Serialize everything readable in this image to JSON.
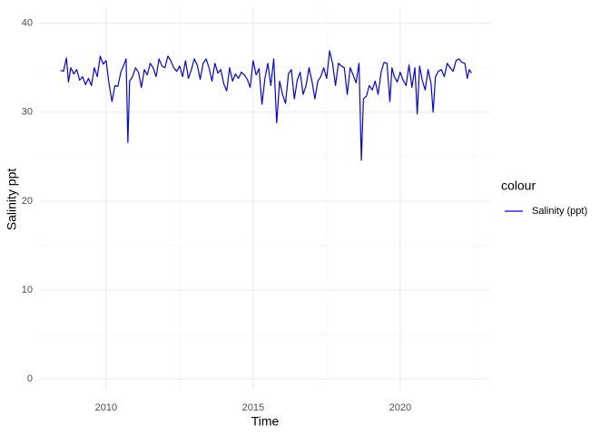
{
  "chart_data": {
    "type": "line",
    "x_label": "Time",
    "y_label": "Salinity ppt",
    "legend_title": "colour",
    "legend_position": "right",
    "grid": true,
    "xlim": [
      2007.75,
      2023.06
    ],
    "xticks": [
      2010,
      2015,
      2020
    ],
    "minor_xticks": [
      2007.5,
      2012.5,
      2017.5,
      2022.5
    ],
    "ylim": [
      -1.2,
      41.6
    ],
    "yticks": [
      0,
      10,
      20,
      30,
      40
    ],
    "minor_yticks": [
      5,
      15,
      25,
      35
    ],
    "x": [
      2008.45,
      2008.55,
      2008.65,
      2008.72,
      2008.8,
      2008.9,
      2009.0,
      2009.1,
      2009.2,
      2009.3,
      2009.4,
      2009.5,
      2009.6,
      2009.7,
      2009.8,
      2009.9,
      2010.0,
      2010.1,
      2010.2,
      2010.3,
      2010.4,
      2010.5,
      2010.6,
      2010.68,
      2010.74,
      2010.8,
      2010.9,
      2011.0,
      2011.1,
      2011.2,
      2011.3,
      2011.4,
      2011.5,
      2011.6,
      2011.7,
      2011.8,
      2011.9,
      2012.0,
      2012.1,
      2012.2,
      2012.3,
      2012.4,
      2012.5,
      2012.6,
      2012.7,
      2012.8,
      2012.9,
      2013.0,
      2013.1,
      2013.2,
      2013.3,
      2013.4,
      2013.5,
      2013.6,
      2013.7,
      2013.8,
      2013.9,
      2014.0,
      2014.1,
      2014.2,
      2014.3,
      2014.4,
      2014.5,
      2014.6,
      2014.7,
      2014.8,
      2014.9,
      2015.0,
      2015.1,
      2015.2,
      2015.3,
      2015.4,
      2015.5,
      2015.6,
      2015.7,
      2015.8,
      2015.9,
      2016.0,
      2016.1,
      2016.2,
      2016.3,
      2016.4,
      2016.5,
      2016.6,
      2016.7,
      2016.8,
      2016.9,
      2017.0,
      2017.1,
      2017.2,
      2017.3,
      2017.4,
      2017.5,
      2017.6,
      2017.7,
      2017.8,
      2017.9,
      2018.0,
      2018.1,
      2018.2,
      2018.3,
      2018.4,
      2018.5,
      2018.6,
      2018.68,
      2018.75,
      2018.85,
      2018.95,
      2019.05,
      2019.15,
      2019.25,
      2019.35,
      2019.45,
      2019.55,
      2019.65,
      2019.72,
      2019.8,
      2019.9,
      2020.0,
      2020.1,
      2020.2,
      2020.3,
      2020.4,
      2020.5,
      2020.58,
      2020.66,
      2020.75,
      2020.85,
      2020.95,
      2021.05,
      2021.12,
      2021.2,
      2021.3,
      2021.4,
      2021.5,
      2021.6,
      2021.7,
      2021.8,
      2021.9,
      2022.0,
      2022.1,
      2022.2,
      2022.28,
      2022.35,
      2022.42
    ],
    "series": [
      {
        "name": "Salinity (ppt)",
        "color": "#0000ff",
        "values": [
          34.7,
          34.6,
          36.1,
          33.4,
          35.0,
          34.3,
          34.8,
          33.6,
          34.0,
          33.1,
          33.8,
          33.0,
          35.0,
          34.0,
          36.3,
          35.4,
          35.8,
          33.2,
          31.2,
          33.0,
          32.9,
          34.5,
          35.3,
          36.0,
          26.6,
          33.5,
          34.0,
          35.0,
          34.5,
          32.8,
          34.8,
          34.2,
          35.5,
          35.0,
          34.0,
          36.0,
          35.2,
          35.0,
          36.3,
          35.8,
          35.0,
          34.6,
          35.2,
          34.0,
          35.8,
          33.8,
          34.8,
          36.0,
          35.3,
          33.7,
          35.5,
          36.0,
          35.0,
          33.5,
          35.5,
          34.4,
          34.8,
          33.2,
          32.4,
          35.0,
          33.5,
          34.3,
          33.8,
          34.5,
          34.2,
          33.7,
          32.8,
          35.8,
          34.2,
          34.9,
          30.9,
          33.8,
          35.5,
          33.0,
          36.0,
          28.8,
          33.5,
          32.0,
          31.0,
          34.3,
          34.8,
          31.5,
          33.6,
          34.5,
          32.0,
          33.0,
          35.0,
          33.5,
          31.5,
          33.5,
          34.0,
          35.0,
          33.8,
          36.9,
          35.5,
          33.0,
          35.5,
          35.2,
          35.0,
          32.0,
          35.0,
          34.2,
          33.3,
          35.5,
          24.6,
          31.5,
          31.8,
          33.0,
          32.5,
          33.5,
          32.0,
          34.5,
          35.6,
          35.5,
          31.2,
          35.0,
          34.0,
          33.4,
          34.5,
          33.6,
          33.0,
          35.3,
          32.8,
          35.0,
          29.8,
          35.2,
          33.6,
          32.5,
          34.8,
          33.2,
          30.0,
          34.0,
          34.6,
          34.8,
          34.0,
          35.5,
          35.0,
          34.6,
          35.8,
          36.0,
          35.6,
          35.5,
          33.8,
          34.8,
          34.4
        ]
      }
    ]
  }
}
